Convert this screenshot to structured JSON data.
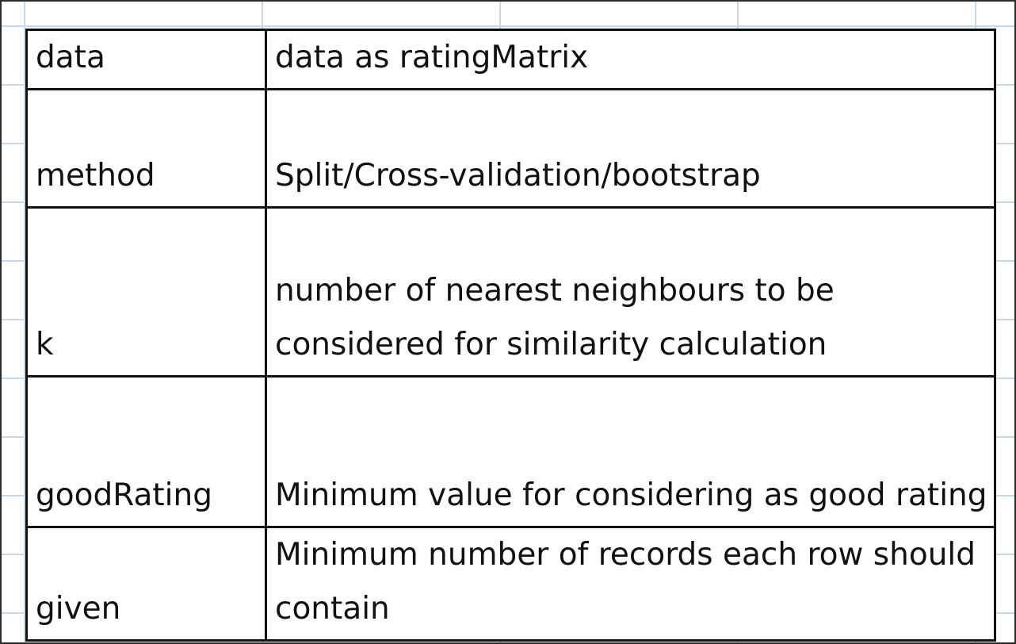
{
  "table": {
    "rows": [
      {
        "param": "data",
        "description": "data as ratingMatrix"
      },
      {
        "param": "method",
        "description": "Split/Cross-validation/bootstrap"
      },
      {
        "param": "k",
        "description": "number of nearest neighbours to be considered for similarity calculation"
      },
      {
        "param": "goodRating",
        "description": "Minimum value for considering as good rating"
      },
      {
        "param": "given",
        "description": "Minimum number of records each row should contain"
      }
    ]
  }
}
